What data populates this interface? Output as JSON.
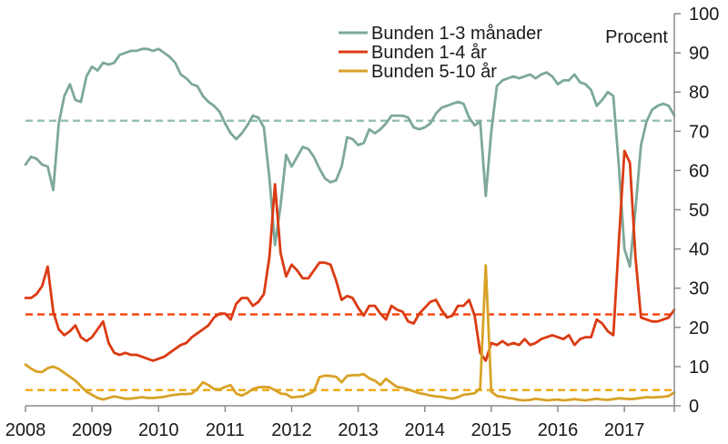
{
  "chart_data": {
    "type": "line",
    "title": "",
    "unit_label": "Procent",
    "x_frequency": "monthly",
    "x_start": "2008-01",
    "x_end": "2017-10",
    "x_tick_years": [
      2008,
      2009,
      2010,
      2011,
      2012,
      2013,
      2014,
      2015,
      2016,
      2017
    ],
    "ylim": [
      0,
      100
    ],
    "yticks": [
      0,
      10,
      20,
      30,
      40,
      50,
      60,
      70,
      80,
      90,
      100
    ],
    "grid": false,
    "legend_position": "top-center",
    "average_lines_dashed": true,
    "axis_color": "#8c8c8c",
    "series": [
      {
        "name": "Bunden 1-3 månader",
        "color": "#7DA89A",
        "dashed_average_color": "#90BDAE",
        "average": 72.7,
        "values": [
          61.5,
          63.5,
          63,
          61.5,
          61,
          55,
          72,
          79,
          82,
          78,
          77.5,
          84,
          86.5,
          85.5,
          87.5,
          87,
          87.5,
          89.5,
          90,
          90.5,
          90.5,
          91,
          91,
          90.5,
          91,
          90,
          89,
          87.5,
          84.5,
          83.5,
          82,
          81.5,
          79,
          77.5,
          76.5,
          75,
          72,
          69.5,
          68,
          69.5,
          71.5,
          74,
          73.5,
          71,
          58,
          41,
          51,
          64,
          61,
          63.5,
          66,
          65.5,
          63.5,
          60.5,
          58,
          57,
          57.5,
          61,
          68.5,
          68,
          66.5,
          67,
          70.5,
          69.5,
          70.5,
          72,
          74,
          74,
          74,
          73.5,
          71,
          70.5,
          71,
          72,
          74.5,
          76,
          76.5,
          77,
          77.5,
          77,
          73.5,
          71.5,
          72.5,
          53.5,
          70,
          81.5,
          83,
          83.5,
          84,
          83.5,
          84,
          84.5,
          83.5,
          84.5,
          85,
          84,
          82,
          83,
          83,
          84.5,
          82.5,
          82,
          80.5,
          76.5,
          78,
          80,
          79,
          61,
          40,
          35.5,
          50,
          66.5,
          72.5,
          75.5,
          76.5,
          77,
          76.5,
          74
        ]
      },
      {
        "name": "Bunden 1-4 år",
        "color": "#DB3B13",
        "dashed_average_color": "#F24109",
        "average": 23.3,
        "values": [
          27.5,
          27.5,
          28.5,
          30.5,
          35.5,
          24,
          19.5,
          18,
          19,
          20.5,
          17.5,
          16.5,
          17.5,
          19.5,
          21.5,
          16,
          13.5,
          13,
          13.5,
          13,
          13,
          12.5,
          12,
          11.5,
          12,
          12.5,
          13.5,
          14.5,
          15.5,
          16,
          17.5,
          18.5,
          19.5,
          20.5,
          22.5,
          23.5,
          23.5,
          22,
          26,
          27.5,
          27.5,
          25.5,
          26.5,
          28.5,
          38,
          56.5,
          39,
          33,
          36,
          34.5,
          32.5,
          32.5,
          34.5,
          36.5,
          36.5,
          36,
          32,
          27,
          28,
          27.5,
          25,
          23,
          25.5,
          25.5,
          23.5,
          22,
          25.5,
          24.5,
          24,
          21.5,
          21,
          23.5,
          25,
          26.5,
          27,
          24.5,
          22.5,
          23,
          25.5,
          25.5,
          27,
          23,
          13.5,
          11.5,
          16,
          15.5,
          16.5,
          15.5,
          16,
          15.5,
          17,
          15.5,
          16,
          17,
          17.5,
          18,
          17.5,
          17,
          18,
          15.5,
          17,
          17.5,
          17.5,
          22,
          21,
          19,
          18,
          42,
          65,
          62,
          38,
          22.5,
          22,
          21.5,
          21.5,
          22,
          22.5,
          24.5
        ]
      },
      {
        "name": "Bunden 5-10 år",
        "color": "#D8A226",
        "dashed_average_color": "#F0AC19",
        "average": 4.0,
        "values": [
          10.5,
          9.5,
          8.7,
          8.6,
          9.6,
          10,
          9.4,
          8.4,
          7.4,
          6.4,
          5,
          3.6,
          2.8,
          2,
          1.6,
          2,
          2.4,
          2.1,
          1.8,
          1.8,
          2,
          2.2,
          2,
          2,
          2.1,
          2.3,
          2.6,
          2.8,
          3,
          3,
          3.1,
          4.3,
          6,
          5.3,
          4.3,
          4.2,
          4.8,
          5.3,
          3.1,
          2.6,
          3.3,
          4.3,
          4.7,
          4.8,
          4.7,
          4,
          3.1,
          3,
          2.1,
          2.3,
          2.4,
          3,
          3.7,
          7.3,
          7.7,
          7.6,
          7.4,
          6,
          7.6,
          7.8,
          7.8,
          8.1,
          7,
          6.4,
          5.3,
          6.9,
          5.8,
          4.8,
          4.6,
          4.2,
          3.7,
          3.2,
          3,
          2.6,
          2.4,
          2.3,
          2,
          1.8,
          2.2,
          2.8,
          3,
          3.2,
          4.5,
          35.8,
          3.6,
          2.5,
          2.3,
          2,
          1.8,
          1.5,
          1.4,
          1.5,
          1.8,
          1.6,
          1.4,
          1.5,
          1.6,
          1.4,
          1.5,
          1.7,
          1.5,
          1.4,
          1.6,
          1.8,
          1.6,
          1.5,
          1.7,
          1.9,
          1.8,
          1.7,
          1.8,
          2,
          2.2,
          2.1,
          2.2,
          2.3,
          2.5,
          3.4
        ]
      }
    ]
  },
  "legend": {
    "items": [
      {
        "label": "Bunden 1-3 månader"
      },
      {
        "label": "Bunden 1-4 år"
      },
      {
        "label": "Bunden 5-10 år"
      }
    ]
  }
}
